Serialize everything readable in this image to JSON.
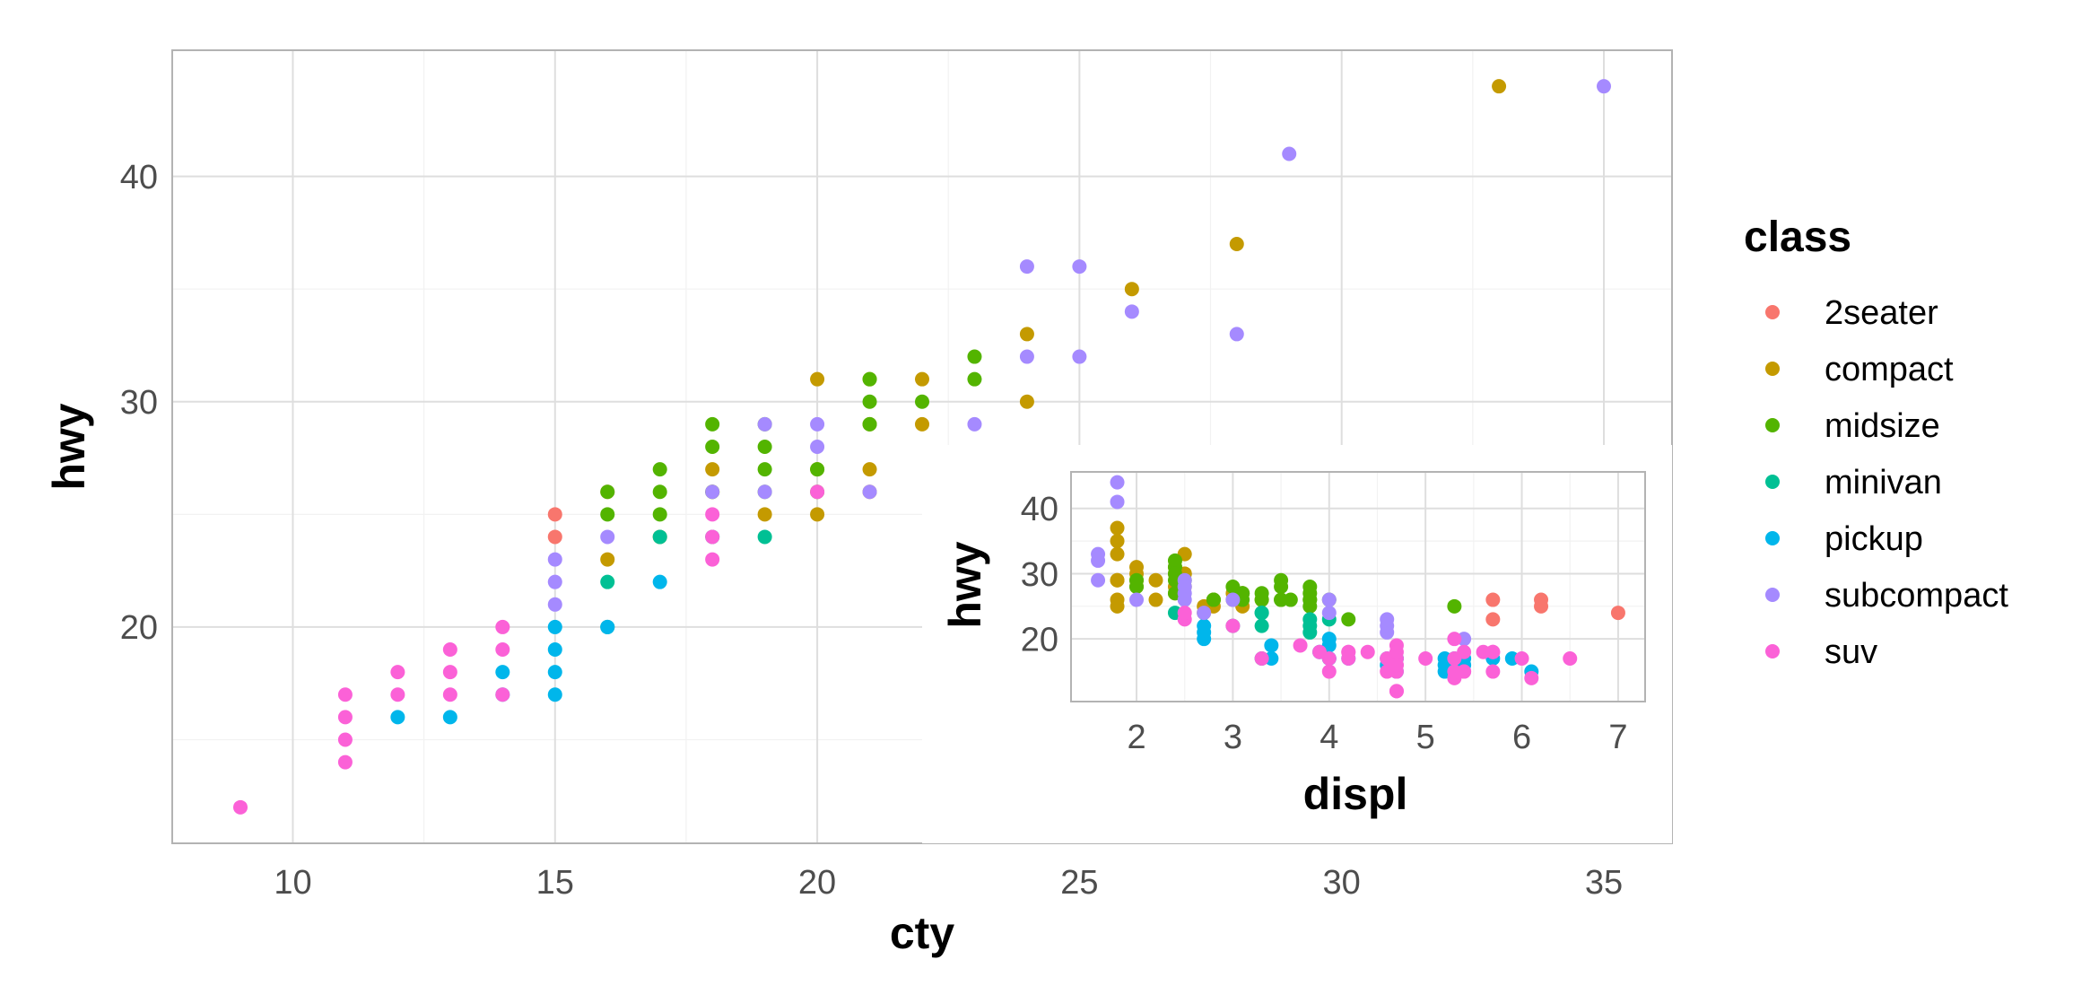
{
  "chart_data": [
    {
      "type": "scatter",
      "title": "",
      "xlabel": "cty",
      "ylabel": "hwy",
      "xlim": [
        7.7,
        36.3
      ],
      "ylim": [
        10.4,
        45.6
      ],
      "xticks": [
        10,
        15,
        20,
        25,
        30,
        35
      ],
      "yticks": [
        20,
        30,
        40
      ],
      "grid": true,
      "series": [
        {
          "name": "2seater",
          "color": "#F8766D",
          "points": [
            [
              15,
              24
            ],
            [
              15,
              25
            ],
            [
              16,
              26
            ]
          ]
        },
        {
          "name": "compact",
          "color": "#C49A00",
          "points": [
            [
              16,
              23
            ],
            [
              17,
              24
            ],
            [
              18,
              26
            ],
            [
              18,
              27
            ],
            [
              19,
              25
            ],
            [
              20,
              25
            ],
            [
              20,
              27
            ],
            [
              20,
              31
            ],
            [
              21,
              26
            ],
            [
              21,
              27
            ],
            [
              21,
              29
            ],
            [
              21,
              31
            ],
            [
              22,
              29
            ],
            [
              22,
              31
            ],
            [
              24,
              30
            ],
            [
              24,
              33
            ],
            [
              26,
              35
            ],
            [
              28,
              37
            ],
            [
              33,
              44
            ]
          ]
        },
        {
          "name": "midsize",
          "color": "#53B400",
          "points": [
            [
              16,
              25
            ],
            [
              16,
              26
            ],
            [
              17,
              25
            ],
            [
              17,
              26
            ],
            [
              17,
              27
            ],
            [
              18,
              26
            ],
            [
              18,
              28
            ],
            [
              18,
              29
            ],
            [
              19,
              26
            ],
            [
              19,
              27
            ],
            [
              19,
              28
            ],
            [
              19,
              29
            ],
            [
              20,
              26
            ],
            [
              20,
              27
            ],
            [
              21,
              29
            ],
            [
              21,
              30
            ],
            [
              21,
              31
            ],
            [
              22,
              30
            ],
            [
              23,
              31
            ],
            [
              23,
              32
            ]
          ]
        },
        {
          "name": "minivan",
          "color": "#00C094",
          "points": [
            [
              16,
              22
            ],
            [
              17,
              24
            ],
            [
              18,
              24
            ],
            [
              19,
              24
            ],
            [
              16,
              20
            ]
          ]
        },
        {
          "name": "pickup",
          "color": "#00B6EB",
          "points": [
            [
              12,
              16
            ],
            [
              13,
              16
            ],
            [
              14,
              17
            ],
            [
              14,
              18
            ],
            [
              15,
              17
            ],
            [
              15,
              18
            ],
            [
              15,
              19
            ],
            [
              15,
              20
            ],
            [
              16,
              20
            ],
            [
              17,
              22
            ]
          ]
        },
        {
          "name": "subcompact",
          "color": "#A58AFF",
          "points": [
            [
              15,
              21
            ],
            [
              15,
              22
            ],
            [
              15,
              23
            ],
            [
              16,
              24
            ],
            [
              18,
              26
            ],
            [
              19,
              26
            ],
            [
              19,
              29
            ],
            [
              20,
              28
            ],
            [
              20,
              29
            ],
            [
              21,
              26
            ],
            [
              23,
              29
            ],
            [
              24,
              32
            ],
            [
              24,
              36
            ],
            [
              25,
              32
            ],
            [
              25,
              36
            ],
            [
              26,
              34
            ],
            [
              28,
              33
            ],
            [
              29,
              41
            ],
            [
              35,
              44
            ]
          ]
        },
        {
          "name": "suv",
          "color": "#FB61D7",
          "points": [
            [
              9,
              12
            ],
            [
              11,
              14
            ],
            [
              11,
              15
            ],
            [
              11,
              16
            ],
            [
              11,
              17
            ],
            [
              12,
              17
            ],
            [
              12,
              18
            ],
            [
              13,
              17
            ],
            [
              13,
              18
            ],
            [
              13,
              19
            ],
            [
              14,
              17
            ],
            [
              14,
              19
            ],
            [
              14,
              20
            ],
            [
              18,
              23
            ],
            [
              18,
              24
            ],
            [
              18,
              25
            ],
            [
              20,
              26
            ]
          ]
        }
      ]
    },
    {
      "type": "scatter",
      "title": "",
      "xlabel": "displ",
      "ylabel": "hwy",
      "xlim": [
        1.32,
        7.28
      ],
      "ylim": [
        10.4,
        45.6
      ],
      "xticks": [
        2,
        3,
        4,
        5,
        6,
        7
      ],
      "yticks": [
        20,
        30,
        40
      ],
      "grid": true,
      "series": [
        {
          "name": "2seater",
          "color": "#F8766D",
          "points": [
            [
              5.7,
              26
            ],
            [
              5.7,
              23
            ],
            [
              6.2,
              26
            ],
            [
              6.2,
              25
            ],
            [
              7.0,
              24
            ]
          ]
        },
        {
          "name": "compact",
          "color": "#C49A00",
          "points": [
            [
              1.8,
              29
            ],
            [
              1.8,
              29
            ],
            [
              2.0,
              31
            ],
            [
              2.0,
              30
            ],
            [
              2.8,
              26
            ],
            [
              2.8,
              26
            ],
            [
              3.1,
              27
            ],
            [
              1.8,
              26
            ],
            [
              1.8,
              25
            ],
            [
              2.0,
              28
            ],
            [
              2.0,
              29
            ],
            [
              2.8,
              25
            ],
            [
              3.1,
              25
            ],
            [
              2.2,
              26
            ],
            [
              2.2,
              29
            ],
            [
              2.4,
              28
            ],
            [
              2.4,
              30
            ],
            [
              3.0,
              26
            ],
            [
              3.3,
              26
            ],
            [
              3.0,
              27
            ],
            [
              1.8,
              33
            ],
            [
              1.8,
              35
            ],
            [
              1.8,
              37
            ],
            [
              2.5,
              30
            ],
            [
              2.5,
              30
            ],
            [
              2.5,
              33
            ],
            [
              2.5,
              28
            ],
            [
              2.7,
              24
            ],
            [
              2.7,
              25
            ],
            [
              2.4,
              31
            ],
            [
              2.4,
              27
            ]
          ]
        },
        {
          "name": "midsize",
          "color": "#53B400",
          "points": [
            [
              2.4,
              29
            ],
            [
              2.4,
              27
            ],
            [
              3.1,
              26
            ],
            [
              3.5,
              26
            ],
            [
              3.6,
              26
            ],
            [
              2.8,
              26
            ],
            [
              3.3,
              27
            ],
            [
              3.8,
              25
            ],
            [
              3.8,
              26
            ],
            [
              3.8,
              28
            ],
            [
              5.3,
              25
            ],
            [
              2.4,
              31
            ],
            [
              2.5,
              29
            ],
            [
              3.0,
              28
            ],
            [
              3.3,
              26
            ],
            [
              3.5,
              29
            ],
            [
              3.5,
              28
            ],
            [
              3.8,
              27
            ],
            [
              3.8,
              26
            ],
            [
              4.0,
              26
            ],
            [
              2.4,
              32
            ],
            [
              2.4,
              30
            ],
            [
              3.1,
              27
            ],
            [
              3.5,
              26
            ],
            [
              2.0,
              29
            ],
            [
              2.0,
              28
            ],
            [
              2.8,
              26
            ],
            [
              3.1,
              27
            ],
            [
              4.2,
              23
            ]
          ]
        },
        {
          "name": "minivan",
          "color": "#00C094",
          "points": [
            [
              2.4,
              24
            ],
            [
              3.0,
              22
            ],
            [
              3.3,
              22
            ],
            [
              3.3,
              24
            ],
            [
              3.3,
              24
            ],
            [
              3.3,
              17
            ],
            [
              3.8,
              22
            ],
            [
              3.8,
              21
            ],
            [
              3.8,
              23
            ],
            [
              4.0,
              23
            ]
          ]
        },
        {
          "name": "pickup",
          "color": "#00B6EB",
          "points": [
            [
              2.7,
              20
            ],
            [
              2.7,
              22
            ],
            [
              3.4,
              17
            ],
            [
              3.9,
              18
            ],
            [
              4.0,
              17
            ],
            [
              4.0,
              19
            ],
            [
              4.0,
              20
            ],
            [
              4.0,
              17
            ],
            [
              4.2,
              17
            ],
            [
              4.6,
              16
            ],
            [
              4.6,
              17
            ],
            [
              4.7,
              15
            ],
            [
              4.7,
              17
            ],
            [
              5.2,
              16
            ],
            [
              5.2,
              15
            ],
            [
              5.3,
              17
            ],
            [
              5.4,
              16
            ],
            [
              5.4,
              17
            ],
            [
              5.9,
              17
            ],
            [
              3.4,
              19
            ],
            [
              4.7,
              17
            ],
            [
              5.7,
              17
            ],
            [
              2.7,
              21
            ],
            [
              5.2,
              17
            ],
            [
              6.1,
              15
            ]
          ]
        },
        {
          "name": "subcompact",
          "color": "#A58AFF",
          "points": [
            [
              1.6,
              33
            ],
            [
              1.6,
              32
            ],
            [
              1.6,
              29
            ],
            [
              1.8,
              41
            ],
            [
              1.8,
              44
            ],
            [
              2.0,
              26
            ],
            [
              2.5,
              29
            ],
            [
              2.5,
              27
            ],
            [
              2.5,
              28
            ],
            [
              2.5,
              26
            ],
            [
              2.7,
              24
            ],
            [
              3.0,
              26
            ],
            [
              4.0,
              24
            ],
            [
              4.0,
              26
            ],
            [
              4.6,
              21
            ],
            [
              4.6,
              22
            ],
            [
              4.6,
              23
            ],
            [
              5.4,
              20
            ]
          ]
        },
        {
          "name": "suv",
          "color": "#FB61D7",
          "points": [
            [
              4.7,
              12
            ],
            [
              4.7,
              19
            ],
            [
              4.7,
              17
            ],
            [
              4.7,
              15
            ],
            [
              5.3,
              17
            ],
            [
              5.7,
              18
            ],
            [
              6.5,
              17
            ],
            [
              4.2,
              18
            ],
            [
              4.4,
              18
            ],
            [
              4.6,
              15
            ],
            [
              5.4,
              18
            ],
            [
              5.4,
              15
            ],
            [
              4.7,
              12
            ],
            [
              4.7,
              16
            ],
            [
              5.4,
              15
            ],
            [
              6.1,
              14
            ],
            [
              5.7,
              18
            ],
            [
              5.7,
              15
            ],
            [
              6.0,
              17
            ],
            [
              4.0,
              15
            ],
            [
              4.0,
              17
            ],
            [
              4.6,
              17
            ],
            [
              5.0,
              17
            ],
            [
              5.3,
              14
            ],
            [
              5.3,
              15
            ],
            [
              5.3,
              20
            ],
            [
              2.5,
              23
            ],
            [
              2.5,
              24
            ],
            [
              3.3,
              17
            ],
            [
              3.7,
              19
            ],
            [
              3.0,
              22
            ],
            [
              4.2,
              17
            ],
            [
              4.2,
              18
            ],
            [
              5.6,
              18
            ],
            [
              3.9,
              18
            ],
            [
              4.7,
              16
            ],
            [
              4.7,
              18
            ]
          ]
        }
      ]
    }
  ],
  "legend": {
    "title": "class",
    "placement": "right",
    "items": [
      {
        "label": "2seater",
        "color": "#F8766D"
      },
      {
        "label": "compact",
        "color": "#C49A00"
      },
      {
        "label": "midsize",
        "color": "#53B400"
      },
      {
        "label": "minivan",
        "color": "#00C094"
      },
      {
        "label": "pickup",
        "color": "#00B6EB"
      },
      {
        "label": "subcompact",
        "color": "#A58AFF"
      },
      {
        "label": "suv",
        "color": "#FB61D7"
      }
    ]
  }
}
